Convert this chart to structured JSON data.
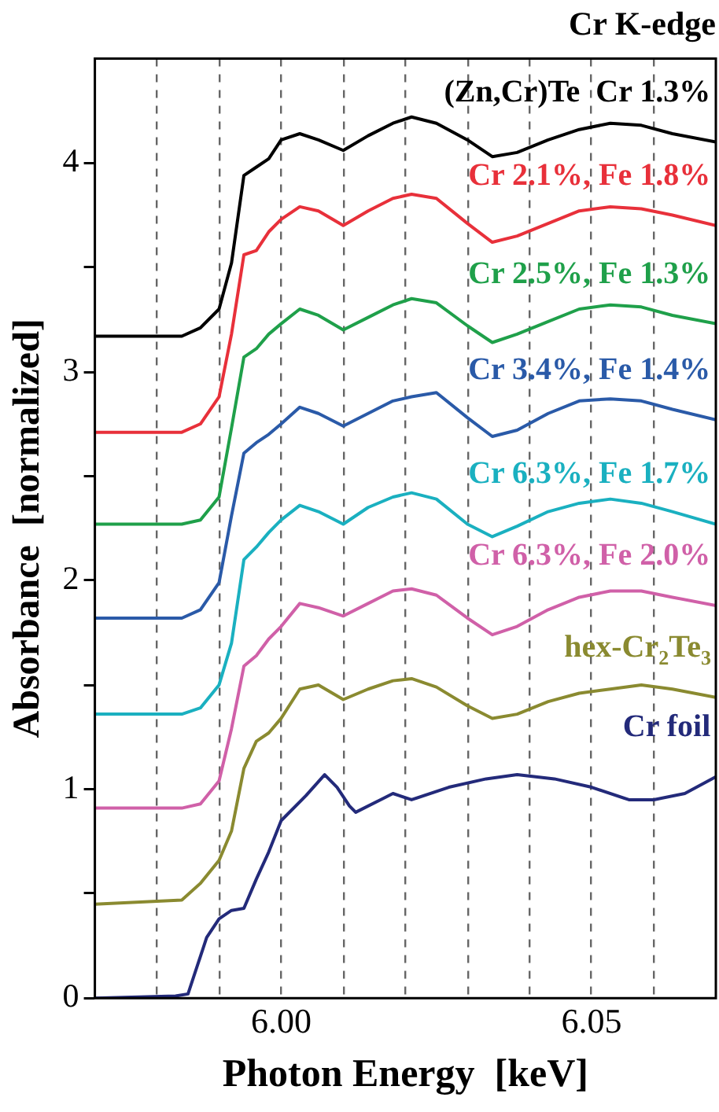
{
  "chart_data": {
    "type": "line",
    "title": "Cr K-edge",
    "xlabel": "Photon Energy  [keV]",
    "ylabel": "Absorbance  [normalized]",
    "xlim": [
      5.97,
      6.07
    ],
    "ylim": [
      0,
      4.5
    ],
    "xticks": [
      {
        "value": 5.98,
        "label": null
      },
      {
        "value": 5.99,
        "label": null
      },
      {
        "value": 6.0,
        "label": "6.00"
      },
      {
        "value": 6.01,
        "label": null
      },
      {
        "value": 6.02,
        "label": null
      },
      {
        "value": 6.03,
        "label": null
      },
      {
        "value": 6.04,
        "label": null
      },
      {
        "value": 6.05,
        "label": "6.05"
      },
      {
        "value": 6.06,
        "label": null
      }
    ],
    "yticks": [
      0,
      {
        "value": 0.5,
        "label": null
      },
      1,
      {
        "value": 1.5,
        "label": null
      },
      2,
      {
        "value": 2.5,
        "label": null
      },
      3,
      {
        "value": 3.5,
        "label": null
      },
      4
    ],
    "grid": "x",
    "legend": false,
    "marker": "none",
    "line_style": "solid",
    "x": [
      5.97,
      5.984,
      5.987,
      5.99,
      5.992,
      5.994,
      5.996,
      5.998,
      6.0,
      6.003,
      6.006,
      6.01,
      6.014,
      6.018,
      6.021,
      6.025,
      6.03,
      6.034,
      6.038,
      6.043,
      6.048,
      6.053,
      6.058,
      6.063,
      6.07
    ],
    "series": [
      {
        "name": "(Zn,Cr)Te  Cr 1.3%",
        "color": "#000000",
        "values": [
          3.17,
          3.17,
          3.21,
          3.3,
          3.52,
          3.94,
          3.98,
          4.02,
          4.11,
          4.14,
          4.11,
          4.06,
          4.13,
          4.19,
          4.22,
          4.19,
          4.11,
          4.03,
          4.05,
          4.11,
          4.16,
          4.19,
          4.18,
          4.14,
          4.1
        ]
      },
      {
        "name": "Cr 2.1%, Fe 1.8%",
        "color": "#e8303a",
        "values": [
          2.71,
          2.71,
          2.75,
          2.88,
          3.18,
          3.56,
          3.58,
          3.67,
          3.73,
          3.79,
          3.77,
          3.7,
          3.77,
          3.83,
          3.85,
          3.83,
          3.71,
          3.62,
          3.65,
          3.71,
          3.77,
          3.79,
          3.78,
          3.75,
          3.7
        ]
      },
      {
        "name": "Cr 2.5%, Fe 1.3%",
        "color": "#1fa04a",
        "values": [
          2.27,
          2.27,
          2.29,
          2.4,
          2.73,
          3.07,
          3.11,
          3.18,
          3.23,
          3.3,
          3.27,
          3.2,
          3.26,
          3.32,
          3.35,
          3.33,
          3.22,
          3.14,
          3.18,
          3.24,
          3.3,
          3.32,
          3.31,
          3.27,
          3.23
        ]
      },
      {
        "name": "Cr 3.4%, Fe 1.4%",
        "color": "#2a5aa8",
        "values": [
          1.82,
          1.82,
          1.86,
          1.99,
          2.31,
          2.61,
          2.66,
          2.7,
          2.75,
          2.83,
          2.8,
          2.74,
          2.8,
          2.86,
          2.88,
          2.9,
          2.78,
          2.69,
          2.72,
          2.8,
          2.86,
          2.87,
          2.86,
          2.82,
          2.77
        ]
      },
      {
        "name": "Cr 6.3%, Fe 1.7%",
        "color": "#1ab0c0",
        "values": [
          1.36,
          1.36,
          1.39,
          1.5,
          1.7,
          2.1,
          2.16,
          2.23,
          2.29,
          2.36,
          2.33,
          2.27,
          2.35,
          2.4,
          2.42,
          2.39,
          2.27,
          2.21,
          2.26,
          2.33,
          2.37,
          2.39,
          2.37,
          2.33,
          2.27
        ]
      },
      {
        "name": "Cr 6.3%, Fe 2.0%",
        "color": "#d060a8",
        "values": [
          0.91,
          0.91,
          0.93,
          1.04,
          1.29,
          1.59,
          1.64,
          1.72,
          1.78,
          1.89,
          1.87,
          1.83,
          1.89,
          1.95,
          1.96,
          1.93,
          1.82,
          1.74,
          1.78,
          1.86,
          1.92,
          1.95,
          1.95,
          1.92,
          1.88
        ]
      },
      {
        "name": "hex-Cr$_{2}$Te$_{3}$",
        "color": "#8a8a30",
        "values": [
          0.45,
          0.47,
          0.55,
          0.66,
          0.8,
          1.1,
          1.23,
          1.27,
          1.34,
          1.48,
          1.5,
          1.43,
          1.48,
          1.52,
          1.53,
          1.49,
          1.4,
          1.34,
          1.36,
          1.42,
          1.46,
          1.48,
          1.5,
          1.48,
          1.44
        ]
      },
      {
        "name": "Cr foil",
        "color": "#232a7a",
        "x": [
          5.97,
          5.983,
          5.985,
          5.986,
          5.988,
          5.99,
          5.992,
          5.994,
          5.996,
          5.998,
          6.0,
          6.004,
          6.007,
          6.009,
          6.011,
          6.012,
          6.016,
          6.018,
          6.019,
          6.021,
          6.027,
          6.033,
          6.038,
          6.044,
          6.05,
          6.056,
          6.06,
          6.065,
          6.07
        ],
        "values": [
          0,
          0.01,
          0.02,
          0.11,
          0.29,
          0.38,
          0.42,
          0.43,
          0.57,
          0.7,
          0.85,
          0.97,
          1.07,
          1.01,
          0.92,
          0.89,
          0.95,
          0.98,
          0.97,
          0.95,
          1.01,
          1.05,
          1.07,
          1.05,
          1.01,
          0.95,
          0.95,
          0.98,
          1.06
        ]
      }
    ]
  }
}
